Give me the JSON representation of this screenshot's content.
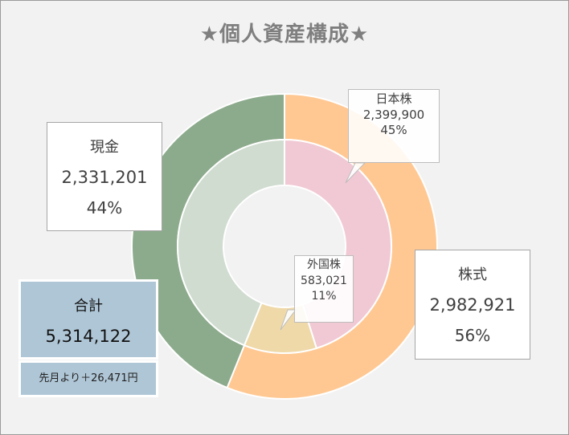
{
  "title": "★個人資産構成★",
  "chart_data": {
    "type": "donut",
    "title": "★個人資産構成★",
    "outer_ring": [
      {
        "name": "株式",
        "value": 2982921,
        "percent_label": "56%",
        "color": "#ffc892"
      },
      {
        "name": "現金",
        "value": 2331201,
        "percent_label": "44%",
        "color": "#8caa8c"
      }
    ],
    "inner_ring": [
      {
        "name": "日本株",
        "value": 2399900,
        "percent_label": "45%",
        "color": "#f1c9d4"
      },
      {
        "name": "外国株",
        "value": 583021,
        "percent_label": "11%",
        "color": "#efd9a9"
      },
      {
        "name": "現金",
        "value": 2331201,
        "percent_label": "44%",
        "color": "#d0dcd0"
      }
    ],
    "labels": {
      "cash": {
        "name": "現金",
        "value": "2,331,201",
        "percent": "44%"
      },
      "stock": {
        "name": "株式",
        "value": "2,982,921",
        "percent": "56%"
      },
      "japan_stock": {
        "name": "日本株",
        "value": "2,399,900",
        "percent": "45%"
      },
      "foreign_stock": {
        "name": "外国株",
        "value": "583,021",
        "percent": "11%"
      }
    }
  },
  "summary": {
    "total_label": "合計",
    "total_value": "5,314,122",
    "diff_text": "先月より＋26,471円",
    "box_color": "#afc6d6"
  }
}
